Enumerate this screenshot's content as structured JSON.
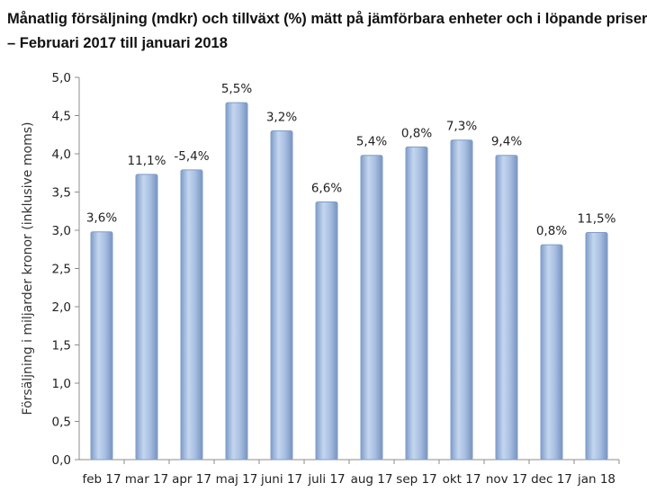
{
  "title_line1": "Månatlig försäljning (mdkr) och tillväxt (%) mätt på jämförbara enheter och i löpande priser",
  "title_line2": "– Februari 2017 till januari 2018",
  "chart_data": {
    "type": "bar",
    "title": "Månatlig försäljning (mdkr) och tillväxt (%) mätt på jämförbara enheter och i löpande priser – Februari 2017 till januari 2018",
    "xlabel": "",
    "ylabel": "Försäljning i miljarder kronor (inklusive moms)",
    "ylim": [
      0,
      5.0
    ],
    "ytick_step": 0.5,
    "ytick_labels": [
      "0,0",
      "0,5",
      "1,0",
      "1,5",
      "2,0",
      "2,5",
      "3,0",
      "3,5",
      "4,0",
      "4,5",
      "5,0"
    ],
    "categories": [
      "feb 17",
      "mar 17",
      "apr 17",
      "maj 17",
      "juni 17",
      "juli 17",
      "aug 17",
      "sep 17",
      "okt 17",
      "nov 17",
      "dec 17",
      "jan 18"
    ],
    "values": [
      2.98,
      3.73,
      3.79,
      4.67,
      4.3,
      3.37,
      3.98,
      4.09,
      4.18,
      3.98,
      2.81,
      2.97
    ],
    "data_labels": [
      "3,6%",
      "11,1%",
      "-5,4%",
      "5,5%",
      "3,2%",
      "6,6%",
      "5,4%",
      "0,8%",
      "7,3%",
      "9,4%",
      "0,8%",
      "11,5%"
    ],
    "grid": false,
    "legend": "none",
    "bar_color": "#9ab6de",
    "bar_edge_color": "#7f9cc8"
  }
}
